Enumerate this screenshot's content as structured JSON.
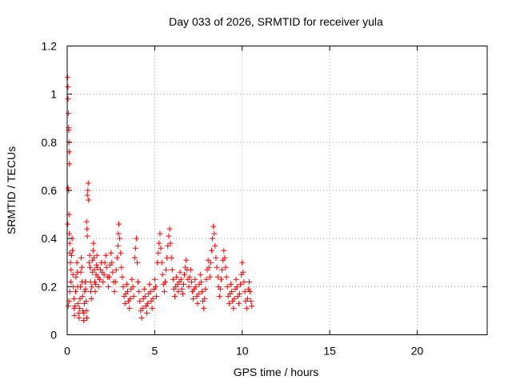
{
  "chart_data": {
    "type": "scatter",
    "title": "Day 033 of 2026, SRMTID for receiver yula",
    "xlabel": "GPS time / hours",
    "ylabel": "SRMTID / TECUs",
    "xlim": [
      0,
      24
    ],
    "ylim": [
      0,
      1.2
    ],
    "xticks": [
      0,
      5,
      10,
      15,
      20
    ],
    "xtick_labels": [
      "0",
      "5",
      "10",
      "15",
      "20"
    ],
    "yticks": [
      0,
      0.2,
      0.4,
      0.6,
      0.8,
      1.0,
      1.2
    ],
    "ytick_labels": [
      "0",
      "0.2",
      "0.4",
      "0.6",
      "0.8",
      "1",
      "1.2"
    ],
    "grid": true,
    "marker": "+",
    "color": "#ff0000",
    "series": [
      {
        "name": "SRMTID",
        "points": [
          [
            0.02,
            1.07
          ],
          [
            0.04,
            1.03
          ],
          [
            0.05,
            0.98
          ],
          [
            0.07,
            0.92
          ],
          [
            0.08,
            0.86
          ],
          [
            0.09,
            0.85
          ],
          [
            0.1,
            0.8
          ],
          [
            0.11,
            0.76
          ],
          [
            0.12,
            0.71
          ],
          [
            0.05,
            0.61
          ],
          [
            0.08,
            0.6
          ],
          [
            0.1,
            0.5
          ],
          [
            0.03,
            0.46
          ],
          [
            0.12,
            0.42
          ],
          [
            0.14,
            0.38
          ],
          [
            0.15,
            0.34
          ],
          [
            0.18,
            0.3
          ],
          [
            0.06,
            0.12
          ],
          [
            0.1,
            0.14
          ],
          [
            0.15,
            0.18
          ],
          [
            0.2,
            0.22
          ],
          [
            0.22,
            0.27
          ],
          [
            0.25,
            0.33
          ],
          [
            0.28,
            0.4
          ],
          [
            0.3,
            0.35
          ],
          [
            0.33,
            0.25
          ],
          [
            0.35,
            0.2
          ],
          [
            0.38,
            0.15
          ],
          [
            0.4,
            0.11
          ],
          [
            0.42,
            0.08
          ],
          [
            0.45,
            0.12
          ],
          [
            0.48,
            0.18
          ],
          [
            0.5,
            0.24
          ],
          [
            0.55,
            0.3
          ],
          [
            0.58,
            0.26
          ],
          [
            0.6,
            0.2
          ],
          [
            0.63,
            0.13
          ],
          [
            0.65,
            0.09
          ],
          [
            0.68,
            0.07
          ],
          [
            0.7,
            0.11
          ],
          [
            0.73,
            0.15
          ],
          [
            0.75,
            0.2
          ],
          [
            0.78,
            0.26
          ],
          [
            0.8,
            0.32
          ],
          [
            0.83,
            0.28
          ],
          [
            0.85,
            0.22
          ],
          [
            0.88,
            0.16
          ],
          [
            0.9,
            0.1
          ],
          [
            0.93,
            0.06
          ],
          [
            0.95,
            0.09
          ],
          [
            0.98,
            0.13
          ],
          [
            1.0,
            0.18
          ],
          [
            1.03,
            0.22
          ],
          [
            1.05,
            0.19
          ],
          [
            1.08,
            0.14
          ],
          [
            1.1,
            0.1
          ],
          [
            1.12,
            0.07
          ],
          [
            1.15,
            0.58
          ],
          [
            1.18,
            0.6
          ],
          [
            1.2,
            0.63
          ],
          [
            1.22,
            0.56
          ],
          [
            1.1,
            0.47
          ],
          [
            1.13,
            0.44
          ],
          [
            1.15,
            0.41
          ],
          [
            1.25,
            0.3
          ],
          [
            1.28,
            0.33
          ],
          [
            1.3,
            0.28
          ],
          [
            1.33,
            0.22
          ],
          [
            1.35,
            0.18
          ],
          [
            1.38,
            0.15
          ],
          [
            1.4,
            0.2
          ],
          [
            1.43,
            0.26
          ],
          [
            1.45,
            0.31
          ],
          [
            1.48,
            0.35
          ],
          [
            1.5,
            0.38
          ],
          [
            1.53,
            0.32
          ],
          [
            1.55,
            0.27
          ],
          [
            1.58,
            0.22
          ],
          [
            1.6,
            0.18
          ],
          [
            1.63,
            0.21
          ],
          [
            1.65,
            0.25
          ],
          [
            1.68,
            0.29
          ],
          [
            1.7,
            0.33
          ],
          [
            1.73,
            0.28
          ],
          [
            1.75,
            0.24
          ],
          [
            1.8,
            0.2
          ],
          [
            1.85,
            0.23
          ],
          [
            1.9,
            0.27
          ],
          [
            1.95,
            0.3
          ],
          [
            2.0,
            0.26
          ],
          [
            2.05,
            0.22
          ],
          [
            2.1,
            0.25
          ],
          [
            2.15,
            0.3
          ],
          [
            2.2,
            0.33
          ],
          [
            2.25,
            0.28
          ],
          [
            2.3,
            0.24
          ],
          [
            2.35,
            0.2
          ],
          [
            2.4,
            0.24
          ],
          [
            2.45,
            0.29
          ],
          [
            2.5,
            0.34
          ],
          [
            2.55,
            0.3
          ],
          [
            2.6,
            0.26
          ],
          [
            2.65,
            0.22
          ],
          [
            2.7,
            0.18
          ],
          [
            2.75,
            0.22
          ],
          [
            2.8,
            0.27
          ],
          [
            2.85,
            0.32
          ],
          [
            2.9,
            0.37
          ],
          [
            2.92,
            0.42
          ],
          [
            2.95,
            0.46
          ],
          [
            3.0,
            0.4
          ],
          [
            3.05,
            0.34
          ],
          [
            3.1,
            0.28
          ],
          [
            3.15,
            0.24
          ],
          [
            3.2,
            0.2
          ],
          [
            3.25,
            0.16
          ],
          [
            3.3,
            0.13
          ],
          [
            3.35,
            0.17
          ],
          [
            3.4,
            0.21
          ],
          [
            3.45,
            0.18
          ],
          [
            3.5,
            0.14
          ],
          [
            3.55,
            0.11
          ],
          [
            3.6,
            0.15
          ],
          [
            3.65,
            0.19
          ],
          [
            3.7,
            0.23
          ],
          [
            3.75,
            0.2
          ],
          [
            3.8,
            0.16
          ],
          [
            3.85,
            0.32
          ],
          [
            3.9,
            0.36
          ],
          [
            3.95,
            0.4
          ],
          [
            4.0,
            0.3
          ],
          [
            4.05,
            0.22
          ],
          [
            4.1,
            0.18
          ],
          [
            4.15,
            0.14
          ],
          [
            4.2,
            0.1
          ],
          [
            4.25,
            0.07
          ],
          [
            4.3,
            0.11
          ],
          [
            4.35,
            0.15
          ],
          [
            4.4,
            0.19
          ],
          [
            4.45,
            0.16
          ],
          [
            4.5,
            0.12
          ],
          [
            4.55,
            0.09
          ],
          [
            4.6,
            0.13
          ],
          [
            4.65,
            0.17
          ],
          [
            4.7,
            0.21
          ],
          [
            4.75,
            0.18
          ],
          [
            4.8,
            0.14
          ],
          [
            4.85,
            0.11
          ],
          [
            4.9,
            0.15
          ],
          [
            4.95,
            0.19
          ],
          [
            5.0,
            0.23
          ],
          [
            5.05,
            0.2
          ],
          [
            5.1,
            0.16
          ],
          [
            5.15,
            0.3
          ],
          [
            5.2,
            0.34
          ],
          [
            5.25,
            0.38
          ],
          [
            5.3,
            0.42
          ],
          [
            5.35,
            0.36
          ],
          [
            5.4,
            0.3
          ],
          [
            5.45,
            0.25
          ],
          [
            5.5,
            0.21
          ],
          [
            5.55,
            0.18
          ],
          [
            5.6,
            0.22
          ],
          [
            5.65,
            0.27
          ],
          [
            5.7,
            0.32
          ],
          [
            5.75,
            0.37
          ],
          [
            5.8,
            0.41
          ],
          [
            5.85,
            0.44
          ],
          [
            5.9,
            0.38
          ],
          [
            5.95,
            0.32
          ],
          [
            6.0,
            0.27
          ],
          [
            6.05,
            0.23
          ],
          [
            6.1,
            0.19
          ],
          [
            6.15,
            0.16
          ],
          [
            6.2,
            0.2
          ],
          [
            6.25,
            0.24
          ],
          [
            6.3,
            0.21
          ],
          [
            6.35,
            0.18
          ],
          [
            6.4,
            0.22
          ],
          [
            6.45,
            0.26
          ],
          [
            6.5,
            0.23
          ],
          [
            6.55,
            0.19
          ],
          [
            6.6,
            0.17
          ],
          [
            6.65,
            0.21
          ],
          [
            6.7,
            0.25
          ],
          [
            6.75,
            0.28
          ],
          [
            6.8,
            0.31
          ],
          [
            6.85,
            0.27
          ],
          [
            6.9,
            0.23
          ],
          [
            6.95,
            0.2
          ],
          [
            7.0,
            0.24
          ],
          [
            7.05,
            0.27
          ],
          [
            7.1,
            0.22
          ],
          [
            7.15,
            0.18
          ],
          [
            7.2,
            0.15
          ],
          [
            7.25,
            0.19
          ],
          [
            7.3,
            0.23
          ],
          [
            7.35,
            0.2
          ],
          [
            7.4,
            0.16
          ],
          [
            7.45,
            0.13
          ],
          [
            7.5,
            0.17
          ],
          [
            7.55,
            0.21
          ],
          [
            7.6,
            0.25
          ],
          [
            7.65,
            0.22
          ],
          [
            7.7,
            0.18
          ],
          [
            7.75,
            0.14
          ],
          [
            7.8,
            0.11
          ],
          [
            7.85,
            0.15
          ],
          [
            7.9,
            0.19
          ],
          [
            7.95,
            0.23
          ],
          [
            8.0,
            0.27
          ],
          [
            8.05,
            0.31
          ],
          [
            8.1,
            0.28
          ],
          [
            8.15,
            0.24
          ],
          [
            8.2,
            0.3
          ],
          [
            8.25,
            0.35
          ],
          [
            8.3,
            0.4
          ],
          [
            8.35,
            0.45
          ],
          [
            8.4,
            0.42
          ],
          [
            8.45,
            0.37
          ],
          [
            8.5,
            0.32
          ],
          [
            8.55,
            0.28
          ],
          [
            8.6,
            0.24
          ],
          [
            8.65,
            0.2
          ],
          [
            8.7,
            0.16
          ],
          [
            8.75,
            0.19
          ],
          [
            8.8,
            0.23
          ],
          [
            8.85,
            0.27
          ],
          [
            8.9,
            0.31
          ],
          [
            8.95,
            0.35
          ],
          [
            9.0,
            0.32
          ],
          [
            9.05,
            0.28
          ],
          [
            9.1,
            0.24
          ],
          [
            9.15,
            0.2
          ],
          [
            9.2,
            0.16
          ],
          [
            9.25,
            0.13
          ],
          [
            9.3,
            0.17
          ],
          [
            9.35,
            0.21
          ],
          [
            9.4,
            0.18
          ],
          [
            9.45,
            0.14
          ],
          [
            9.5,
            0.11
          ],
          [
            9.55,
            0.15
          ],
          [
            9.6,
            0.19
          ],
          [
            9.65,
            0.23
          ],
          [
            9.7,
            0.2
          ],
          [
            9.75,
            0.16
          ],
          [
            9.8,
            0.13
          ],
          [
            9.85,
            0.17
          ],
          [
            9.9,
            0.21
          ],
          [
            9.95,
            0.25
          ],
          [
            10.0,
            0.3
          ],
          [
            10.05,
            0.26
          ],
          [
            10.1,
            0.22
          ],
          [
            10.15,
            0.18
          ],
          [
            10.2,
            0.14
          ],
          [
            10.25,
            0.11
          ],
          [
            10.3,
            0.15
          ],
          [
            10.35,
            0.19
          ],
          [
            10.4,
            0.22
          ],
          [
            10.45,
            0.18
          ],
          [
            10.5,
            0.14
          ],
          [
            10.55,
            0.12
          ]
        ]
      }
    ]
  }
}
